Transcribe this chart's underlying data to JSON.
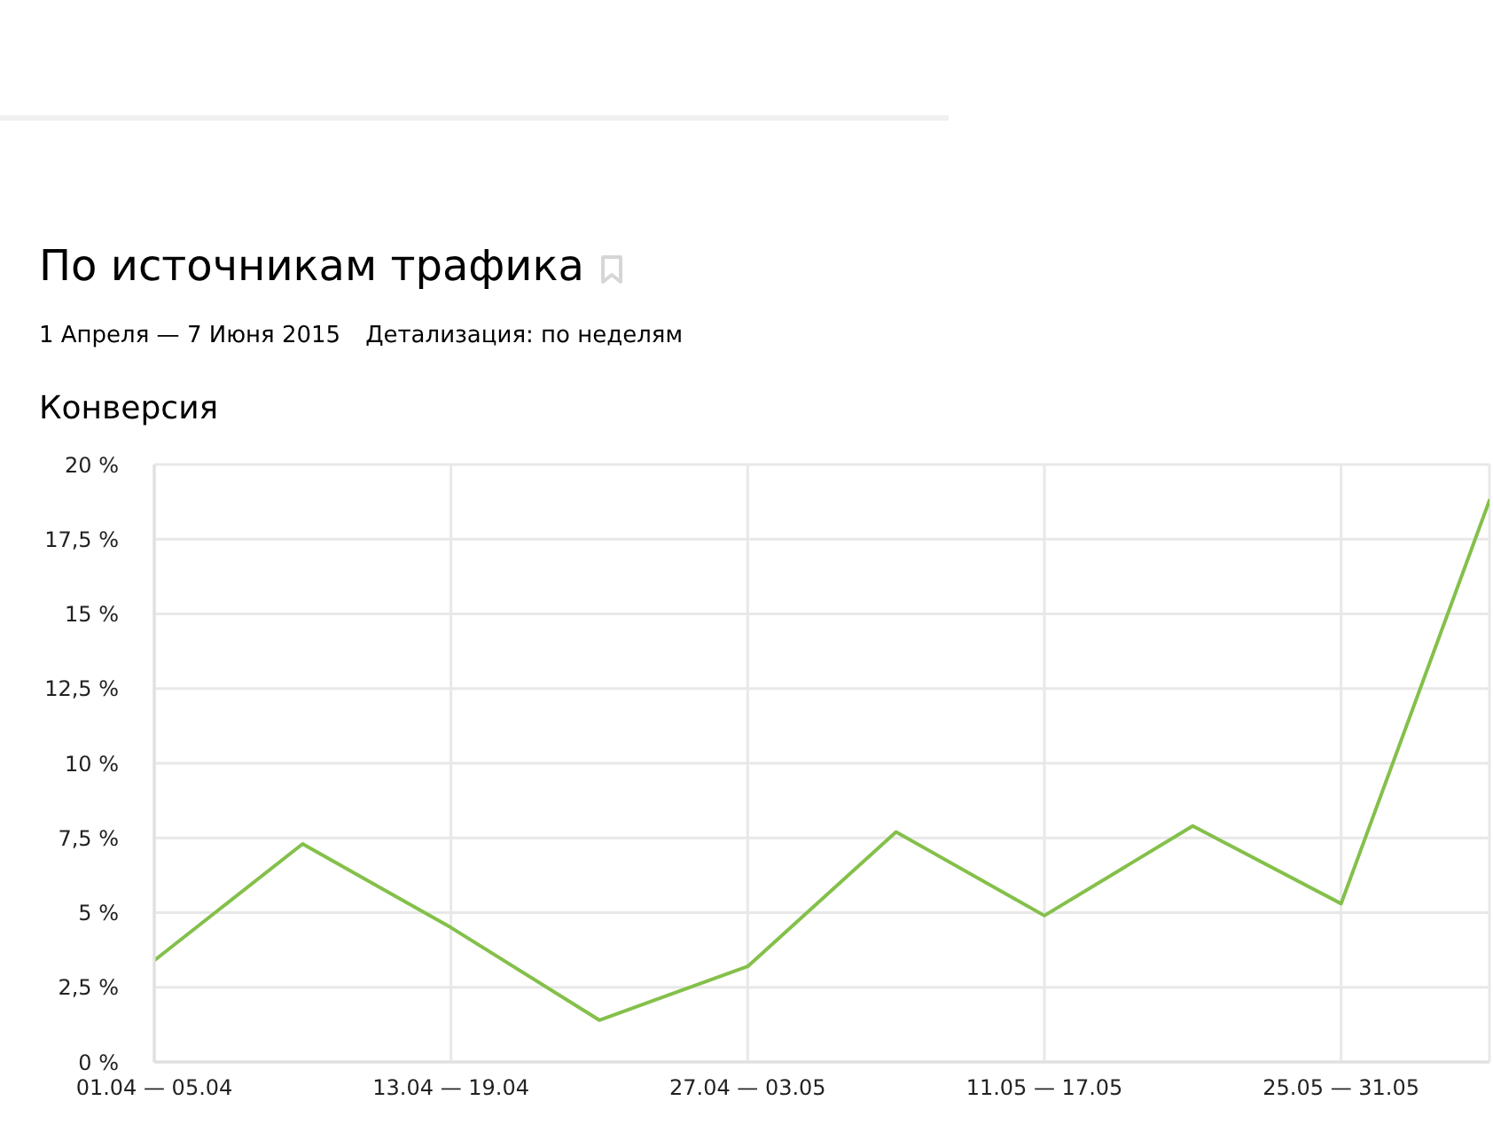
{
  "chart_data": {
    "type": "line",
    "title": "По источникам трафика",
    "subtitle": "1 Апреля — 7 Июня 2015",
    "annotations": [
      "Детализация: по неделям"
    ],
    "ylabel": "Конверсия",
    "categories": [
      "01.04 — 05.04",
      null,
      "13.04 — 19.04",
      null,
      "27.04 — 03.05",
      null,
      "11.05 — 17.05",
      null,
      "25.05 — 31.05",
      null
    ],
    "values": [
      3.4,
      7.3,
      4.5,
      1.4,
      3.2,
      7.7,
      4.9,
      7.9,
      5.3,
      18.8
    ],
    "color": "#84c04a",
    "ylim": [
      0,
      20
    ],
    "yticks": [
      {
        "value": 0,
        "label": "0 %"
      },
      {
        "value": 2.5,
        "label": "2,5 %"
      },
      {
        "value": 5,
        "label": "5 %"
      },
      {
        "value": 7.5,
        "label": "7,5 %"
      },
      {
        "value": 10,
        "label": "10 %"
      },
      {
        "value": 12.5,
        "label": "12,5 %"
      },
      {
        "value": 15,
        "label": "15 %"
      },
      {
        "value": 17.5,
        "label": "17,5 %"
      },
      {
        "value": 20,
        "label": "20 %"
      }
    ],
    "grid": true,
    "marker": "none"
  }
}
